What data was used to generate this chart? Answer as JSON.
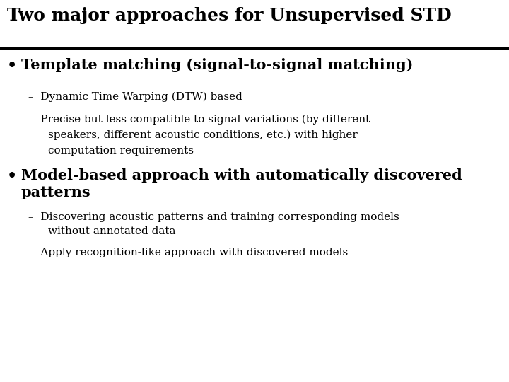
{
  "title": "Two major approaches for Unsupervised STD",
  "background_color": "#ffffff",
  "title_color": "#000000",
  "title_fontsize": 18,
  "line_color": "#000000",
  "bullet1_text": "Template matching (signal-to-signal matching)",
  "bullet_fontsize": 15,
  "sub1a": "Dynamic Time Warping (DTW) based",
  "sub1b_line1": "Precise but less compatible to signal variations (by different",
  "sub1b_line2": "speakers, different acoustic conditions, etc.) with higher",
  "sub1b_line3": "computation requirements",
  "bullet2_line1": "Model-based approach with automatically discovered",
  "bullet2_line2": "patterns",
  "sub2a_line1": "Discovering acoustic patterns and training corresponding models",
  "sub2a_line2": "without annotated data",
  "sub2b": "Apply recognition-like approach with discovered models",
  "sub_fontsize": 11,
  "text_color": "#000000",
  "fig_width": 7.2,
  "fig_height": 5.4,
  "dpi": 100
}
